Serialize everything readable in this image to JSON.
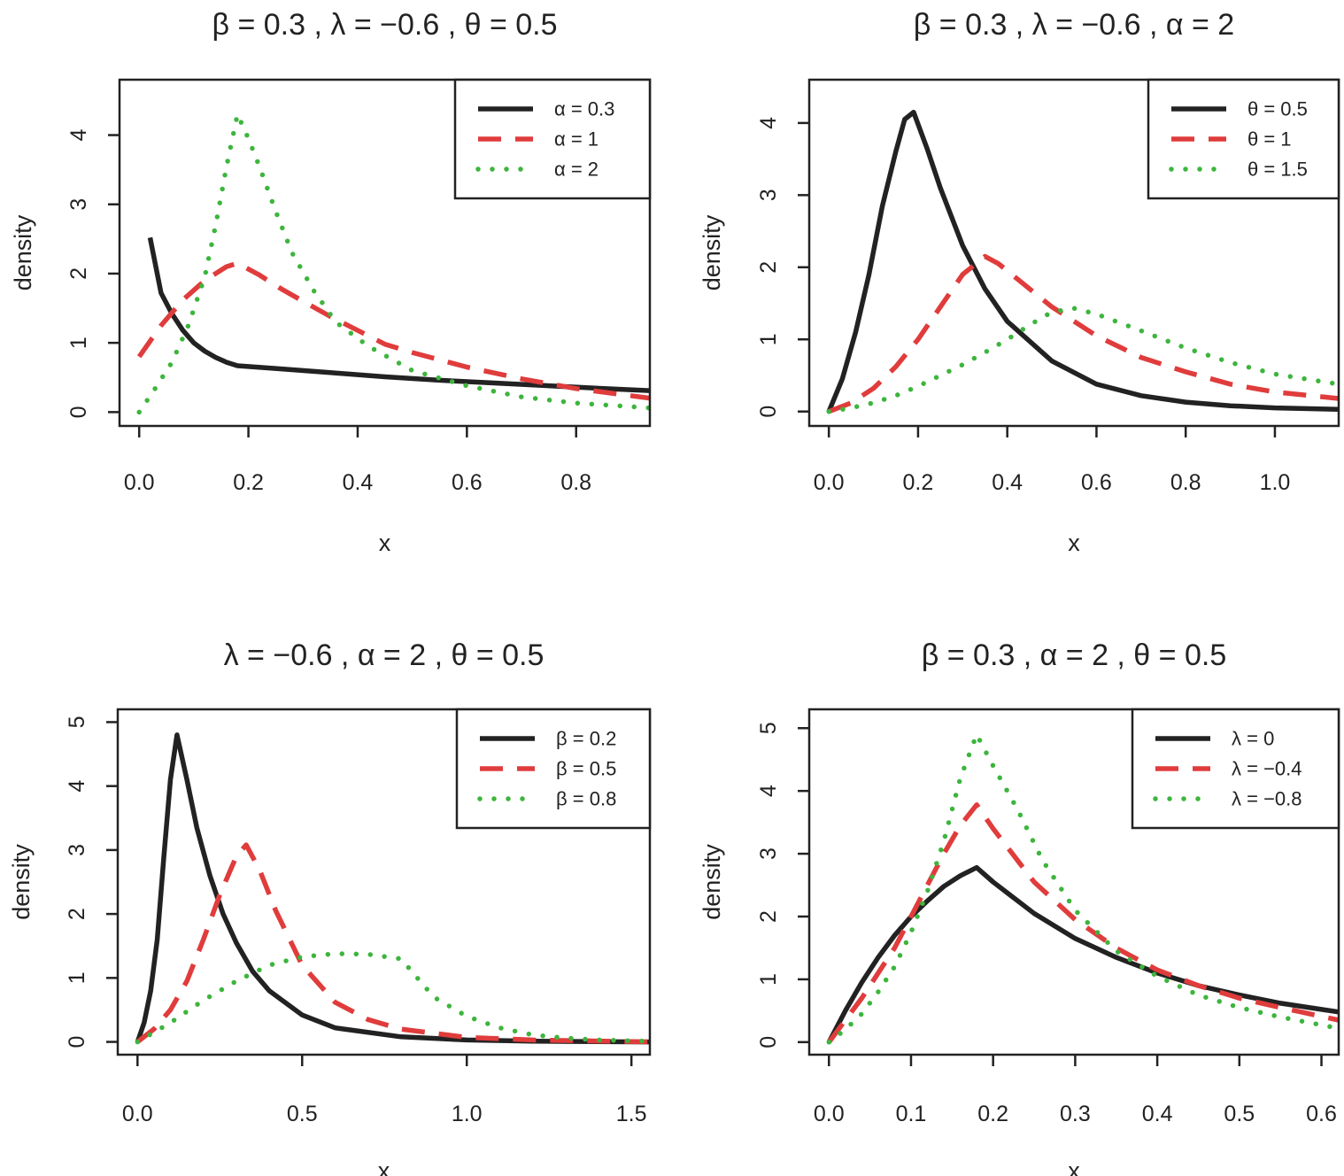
{
  "chart_data": [
    {
      "type": "line",
      "title": "β = 0.3 , λ = −0.6 , θ = 0.5",
      "xlabel": "x",
      "ylabel": "density",
      "xlim": [
        -0.036,
        0.935
      ],
      "ylim": [
        -0.2,
        4.8
      ],
      "xticks": [
        {
          "v": 0.0,
          "label": "0.0"
        },
        {
          "v": 0.2,
          "label": "0.2"
        },
        {
          "v": 0.4,
          "label": "0.4"
        },
        {
          "v": 0.6,
          "label": "0.6"
        },
        {
          "v": 0.8,
          "label": "0.8"
        }
      ],
      "yticks": [
        {
          "v": 0,
          "label": "0"
        },
        {
          "v": 1,
          "label": "1"
        },
        {
          "v": 2,
          "label": "2"
        },
        {
          "v": 3,
          "label": "3"
        },
        {
          "v": 4,
          "label": "4"
        }
      ],
      "grid": false,
      "legend": "top-right",
      "series": [
        {
          "name": "α = 0.3",
          "color": "#222222",
          "style": "solid",
          "x": [
            0.02,
            0.04,
            0.06,
            0.08,
            0.1,
            0.12,
            0.14,
            0.16,
            0.18,
            0.25,
            0.35,
            0.45,
            0.55,
            0.65,
            0.75,
            0.85,
            0.935
          ],
          "y": [
            2.52,
            1.72,
            1.42,
            1.18,
            1.0,
            0.88,
            0.79,
            0.72,
            0.67,
            0.63,
            0.57,
            0.51,
            0.46,
            0.42,
            0.38,
            0.34,
            0.31
          ]
        },
        {
          "name": "α = 1",
          "color": "#e03c3c",
          "style": "dashed",
          "x": [
            0.0,
            0.04,
            0.08,
            0.12,
            0.16,
            0.18,
            0.22,
            0.26,
            0.3,
            0.35,
            0.4,
            0.45,
            0.5,
            0.6,
            0.7,
            0.8,
            0.935
          ],
          "y": [
            0.8,
            1.25,
            1.62,
            1.9,
            2.1,
            2.15,
            1.98,
            1.78,
            1.6,
            1.38,
            1.18,
            0.98,
            0.86,
            0.65,
            0.48,
            0.34,
            0.2
          ]
        },
        {
          "name": "α = 2",
          "color": "#3db53d",
          "style": "dotted",
          "x": [
            0.0,
            0.03,
            0.06,
            0.09,
            0.12,
            0.14,
            0.16,
            0.18,
            0.2,
            0.22,
            0.25,
            0.28,
            0.32,
            0.36,
            0.42,
            0.5,
            0.6,
            0.7,
            0.8,
            0.9,
            0.935
          ],
          "y": [
            0.0,
            0.35,
            0.72,
            1.25,
            1.95,
            2.7,
            3.55,
            4.3,
            3.95,
            3.55,
            2.9,
            2.3,
            1.75,
            1.3,
            0.95,
            0.6,
            0.38,
            0.22,
            0.13,
            0.08,
            0.06
          ]
        }
      ]
    },
    {
      "type": "line",
      "title": "β = 0.3 , λ = −0.6 , α = 2",
      "xlabel": "x",
      "ylabel": "density",
      "xlim": [
        -0.044,
        1.143
      ],
      "ylim": [
        -0.2,
        4.6
      ],
      "xticks": [
        {
          "v": 0.0,
          "label": "0.0"
        },
        {
          "v": 0.2,
          "label": "0.2"
        },
        {
          "v": 0.4,
          "label": "0.4"
        },
        {
          "v": 0.6,
          "label": "0.6"
        },
        {
          "v": 0.8,
          "label": "0.8"
        },
        {
          "v": 1.0,
          "label": "1.0"
        }
      ],
      "yticks": [
        {
          "v": 0,
          "label": "0"
        },
        {
          "v": 1,
          "label": "1"
        },
        {
          "v": 2,
          "label": "2"
        },
        {
          "v": 3,
          "label": "3"
        },
        {
          "v": 4,
          "label": "4"
        }
      ],
      "grid": false,
      "legend": "top-right",
      "series": [
        {
          "name": "θ = 0.5",
          "color": "#222222",
          "style": "solid",
          "x": [
            0.0,
            0.03,
            0.06,
            0.09,
            0.12,
            0.15,
            0.17,
            0.19,
            0.22,
            0.25,
            0.3,
            0.35,
            0.4,
            0.5,
            0.6,
            0.7,
            0.8,
            0.9,
            1.0,
            1.143
          ],
          "y": [
            0.0,
            0.45,
            1.1,
            1.9,
            2.85,
            3.6,
            4.05,
            4.15,
            3.65,
            3.1,
            2.3,
            1.7,
            1.25,
            0.7,
            0.38,
            0.22,
            0.13,
            0.08,
            0.05,
            0.03
          ]
        },
        {
          "name": "θ = 1",
          "color": "#e03c3c",
          "style": "dashed",
          "x": [
            0.0,
            0.05,
            0.1,
            0.15,
            0.2,
            0.25,
            0.3,
            0.35,
            0.38,
            0.42,
            0.5,
            0.6,
            0.7,
            0.8,
            0.9,
            1.0,
            1.143
          ],
          "y": [
            0.0,
            0.12,
            0.32,
            0.62,
            1.0,
            1.45,
            1.9,
            2.15,
            2.05,
            1.85,
            1.45,
            1.05,
            0.75,
            0.55,
            0.38,
            0.27,
            0.18
          ]
        },
        {
          "name": "θ = 1.5",
          "color": "#3db53d",
          "style": "dotted",
          "x": [
            0.0,
            0.05,
            0.1,
            0.15,
            0.2,
            0.25,
            0.3,
            0.35,
            0.4,
            0.45,
            0.5,
            0.55,
            0.6,
            0.7,
            0.8,
            0.9,
            1.0,
            1.143
          ],
          "y": [
            0.0,
            0.05,
            0.12,
            0.22,
            0.35,
            0.5,
            0.65,
            0.82,
            1.0,
            1.2,
            1.38,
            1.43,
            1.35,
            1.12,
            0.88,
            0.68,
            0.52,
            0.38
          ]
        }
      ]
    },
    {
      "type": "line",
      "title": "λ = −0.6 , α = 2 , θ = 0.5",
      "xlabel": "x",
      "ylabel": "density",
      "xlim": [
        -0.06,
        1.556
      ],
      "ylim": [
        -0.2,
        5.2
      ],
      "xticks": [
        {
          "v": 0.0,
          "label": "0.0"
        },
        {
          "v": 0.5,
          "label": "0.5"
        },
        {
          "v": 1.0,
          "label": "1.0"
        },
        {
          "v": 1.5,
          "label": "1.5"
        }
      ],
      "yticks": [
        {
          "v": 0,
          "label": "0"
        },
        {
          "v": 1,
          "label": "1"
        },
        {
          "v": 2,
          "label": "2"
        },
        {
          "v": 3,
          "label": "3"
        },
        {
          "v": 4,
          "label": "4"
        },
        {
          "v": 5,
          "label": "5"
        }
      ],
      "grid": false,
      "legend": "top-right",
      "series": [
        {
          "name": "β = 0.2",
          "color": "#222222",
          "style": "solid",
          "x": [
            0.0,
            0.02,
            0.04,
            0.06,
            0.08,
            0.1,
            0.12,
            0.15,
            0.18,
            0.22,
            0.26,
            0.3,
            0.35,
            0.4,
            0.5,
            0.6,
            0.8,
            1.0,
            1.2,
            1.556
          ],
          "y": [
            0.0,
            0.3,
            0.8,
            1.6,
            2.9,
            4.1,
            4.8,
            4.1,
            3.35,
            2.6,
            2.0,
            1.55,
            1.1,
            0.8,
            0.42,
            0.22,
            0.08,
            0.03,
            0.01,
            0.0
          ]
        },
        {
          "name": "β = 0.5",
          "color": "#e03c3c",
          "style": "dashed",
          "x": [
            0.0,
            0.05,
            0.1,
            0.15,
            0.2,
            0.25,
            0.3,
            0.33,
            0.37,
            0.42,
            0.5,
            0.6,
            0.7,
            0.8,
            1.0,
            1.2,
            1.556
          ],
          "y": [
            0.0,
            0.2,
            0.5,
            0.95,
            1.6,
            2.3,
            2.9,
            3.08,
            2.7,
            2.05,
            1.2,
            0.62,
            0.35,
            0.2,
            0.07,
            0.03,
            0.0
          ]
        },
        {
          "name": "β = 0.8",
          "color": "#3db53d",
          "style": "dotted",
          "x": [
            0.0,
            0.1,
            0.2,
            0.3,
            0.4,
            0.5,
            0.6,
            0.7,
            0.8,
            0.9,
            1.0,
            1.1,
            1.2,
            1.3,
            1.4,
            1.556
          ],
          "y": [
            0.0,
            0.3,
            0.65,
            0.95,
            1.2,
            1.33,
            1.38,
            1.37,
            1.3,
            0.7,
            0.4,
            0.22,
            0.11,
            0.06,
            0.03,
            0.01
          ]
        }
      ]
    },
    {
      "type": "line",
      "title": "β = 0.3 , α = 2 , θ = 0.5",
      "xlabel": "x",
      "ylabel": "density",
      "xlim": [
        -0.024,
        0.621
      ],
      "ylim": [
        -0.2,
        5.3
      ],
      "xticks": [
        {
          "v": 0.0,
          "label": "0.0"
        },
        {
          "v": 0.1,
          "label": "0.1"
        },
        {
          "v": 0.2,
          "label": "0.2"
        },
        {
          "v": 0.3,
          "label": "0.3"
        },
        {
          "v": 0.4,
          "label": "0.4"
        },
        {
          "v": 0.5,
          "label": "0.5"
        },
        {
          "v": 0.6,
          "label": "0.6"
        }
      ],
      "yticks": [
        {
          "v": 0,
          "label": "0"
        },
        {
          "v": 1,
          "label": "1"
        },
        {
          "v": 2,
          "label": "2"
        },
        {
          "v": 3,
          "label": "3"
        },
        {
          "v": 4,
          "label": "4"
        },
        {
          "v": 5,
          "label": "5"
        }
      ],
      "grid": false,
      "legend": "top-right",
      "series": [
        {
          "name": "λ = 0",
          "color": "#222222",
          "style": "solid",
          "x": [
            0.0,
            0.02,
            0.04,
            0.06,
            0.08,
            0.1,
            0.12,
            0.14,
            0.16,
            0.18,
            0.2,
            0.25,
            0.3,
            0.35,
            0.4,
            0.45,
            0.5,
            0.55,
            0.621
          ],
          "y": [
            0.0,
            0.5,
            0.95,
            1.35,
            1.7,
            2.0,
            2.25,
            2.48,
            2.65,
            2.78,
            2.55,
            2.05,
            1.65,
            1.35,
            1.1,
            0.9,
            0.75,
            0.62,
            0.48
          ]
        },
        {
          "name": "λ = −0.4",
          "color": "#e03c3c",
          "style": "dashed",
          "x": [
            0.0,
            0.02,
            0.04,
            0.06,
            0.08,
            0.1,
            0.12,
            0.14,
            0.16,
            0.18,
            0.2,
            0.25,
            0.3,
            0.35,
            0.4,
            0.45,
            0.5,
            0.55,
            0.621
          ],
          "y": [
            0.0,
            0.35,
            0.7,
            1.1,
            1.5,
            2.0,
            2.5,
            3.0,
            3.45,
            3.78,
            3.4,
            2.55,
            1.95,
            1.5,
            1.15,
            0.9,
            0.7,
            0.55,
            0.35
          ]
        },
        {
          "name": "λ = −0.8",
          "color": "#3db53d",
          "style": "dotted",
          "x": [
            0.0,
            0.02,
            0.04,
            0.06,
            0.08,
            0.1,
            0.12,
            0.14,
            0.16,
            0.18,
            0.2,
            0.23,
            0.26,
            0.3,
            0.35,
            0.4,
            0.45,
            0.5,
            0.55,
            0.621
          ],
          "y": [
            0.0,
            0.2,
            0.45,
            0.8,
            1.2,
            1.75,
            2.4,
            3.2,
            4.2,
            4.9,
            4.4,
            3.7,
            2.9,
            2.1,
            1.45,
            1.05,
            0.75,
            0.55,
            0.4,
            0.22
          ]
        }
      ]
    }
  ]
}
